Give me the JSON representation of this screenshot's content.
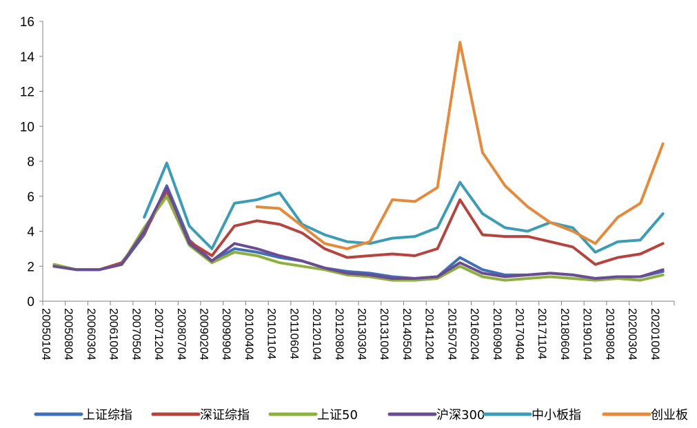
{
  "chart_data": {
    "type": "line",
    "title": "",
    "xlabel": "",
    "ylabel": "",
    "ylim": [
      0,
      16
    ],
    "yticks": [
      0,
      2,
      4,
      6,
      8,
      10,
      12,
      14,
      16
    ],
    "grid": false,
    "legend_position": "bottom",
    "x": [
      "20050104",
      "20050804",
      "20060304",
      "20061004",
      "20070504",
      "20071204",
      "20080704",
      "20090204",
      "20090904",
      "20100404",
      "20101104",
      "20110604",
      "20120104",
      "20120804",
      "20130304",
      "20131004",
      "20140504",
      "20141204",
      "20150704",
      "20160204",
      "20160904",
      "20170404",
      "20171104",
      "20180604",
      "20190104",
      "20190804",
      "20200304",
      "20201004"
    ],
    "series": [
      {
        "name": "上证综指",
        "color": "#3F6FB6",
        "values": [
          2.0,
          1.8,
          1.8,
          2.1,
          3.8,
          6.6,
          3.5,
          2.3,
          3.0,
          2.8,
          2.5,
          2.3,
          1.9,
          1.7,
          1.6,
          1.4,
          1.3,
          1.4,
          2.5,
          1.8,
          1.5,
          1.5,
          1.6,
          1.5,
          1.3,
          1.4,
          1.4,
          1.7
        ]
      },
      {
        "name": "深证综指",
        "color": "#B5443E",
        "values": [
          2.0,
          1.8,
          1.8,
          2.2,
          3.9,
          6.3,
          3.4,
          2.6,
          4.3,
          4.6,
          4.4,
          3.9,
          3.0,
          2.5,
          2.6,
          2.7,
          2.6,
          3.0,
          5.8,
          3.8,
          3.7,
          3.7,
          3.4,
          3.1,
          2.1,
          2.5,
          2.7,
          3.3
        ]
      },
      {
        "name": "上证50",
        "color": "#8DB03E",
        "values": [
          2.1,
          1.8,
          1.8,
          2.1,
          4.2,
          6.0,
          3.2,
          2.2,
          2.8,
          2.6,
          2.2,
          2.0,
          1.8,
          1.5,
          1.4,
          1.2,
          1.2,
          1.3,
          2.0,
          1.4,
          1.2,
          1.3,
          1.4,
          1.3,
          1.2,
          1.3,
          1.2,
          1.5
        ]
      },
      {
        "name": "沪深300",
        "color": "#6A4C93",
        "values": [
          2.0,
          1.8,
          1.8,
          2.1,
          4.0,
          6.5,
          3.3,
          2.3,
          3.3,
          3.0,
          2.6,
          2.3,
          1.9,
          1.6,
          1.5,
          1.3,
          1.3,
          1.4,
          2.2,
          1.6,
          1.4,
          1.5,
          1.6,
          1.5,
          1.3,
          1.4,
          1.4,
          1.8
        ]
      },
      {
        "name": "中小板指",
        "color": "#3B9CB5",
        "values": [
          null,
          null,
          null,
          null,
          4.8,
          7.9,
          4.3,
          3.0,
          5.6,
          5.8,
          6.2,
          4.4,
          3.8,
          3.4,
          3.3,
          3.6,
          3.7,
          4.2,
          6.8,
          5.0,
          4.2,
          4.0,
          4.5,
          4.2,
          2.8,
          3.4,
          3.5,
          5.0
        ]
      },
      {
        "name": "创业板",
        "color": "#E58A3A",
        "values": [
          null,
          null,
          null,
          null,
          null,
          null,
          null,
          null,
          null,
          5.4,
          5.3,
          4.3,
          3.3,
          3.0,
          3.4,
          5.8,
          5.7,
          6.5,
          14.8,
          8.5,
          6.6,
          5.4,
          4.5,
          4.0,
          3.3,
          4.8,
          5.6,
          9.0
        ]
      }
    ]
  }
}
